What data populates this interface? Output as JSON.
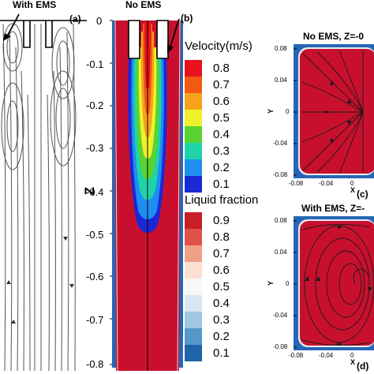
{
  "panel_a": {
    "title": "With EMS",
    "label": "(a)"
  },
  "panel_b": {
    "title": "No EMS",
    "label": "(b)",
    "z_axis_label": "Z",
    "z_ticks": [
      "0",
      "-0.1",
      "-0.2",
      "-0.3",
      "-0.4",
      "-0.5",
      "-0.6",
      "-0.7",
      "-0.8"
    ]
  },
  "velocity_legend": {
    "title": "Velocity(m/s)",
    "levels": [
      "0.8",
      "0.7",
      "0.6",
      "0.5",
      "0.4",
      "0.3",
      "0.2",
      "0.1"
    ],
    "colors": [
      "#e8111c",
      "#f25a14",
      "#f7a21c",
      "#eff02a",
      "#59d331",
      "#1fd3a8",
      "#1e8ef2",
      "#1b28d6"
    ]
  },
  "liquid_legend": {
    "title": "Liquid fraction",
    "levels": [
      "0.9",
      "0.8",
      "0.7",
      "0.6",
      "0.5",
      "0.4",
      "0.3",
      "0.2",
      "0.1"
    ],
    "colors": [
      "#c81e28",
      "#e05148",
      "#f1a088",
      "#fbe0d2",
      "#f7f7f7",
      "#d6e7f2",
      "#9fc8e2",
      "#5497c8",
      "#1f64a8"
    ]
  },
  "panel_c": {
    "title": "No EMS, Z=-0",
    "label": "(c)",
    "y_label": "Y",
    "x_label": "X",
    "y_ticks": [
      "0.08",
      "0.04",
      "0",
      "-0.04",
      "-0.08"
    ],
    "x_ticks": [
      "-0.08",
      "-0.04",
      "0"
    ]
  },
  "panel_d": {
    "title": "With EMS, Z=-",
    "label": "(d)",
    "y_label": "Y",
    "x_label": "X",
    "y_ticks": [
      "0.08",
      "0.04",
      "0",
      "-0.04",
      "-0.08"
    ],
    "x_ticks": [
      "-0.08",
      "-0.04",
      "0"
    ]
  },
  "colors": {
    "domain_red": "#c8102e",
    "mold_blue": "#2866b5"
  }
}
